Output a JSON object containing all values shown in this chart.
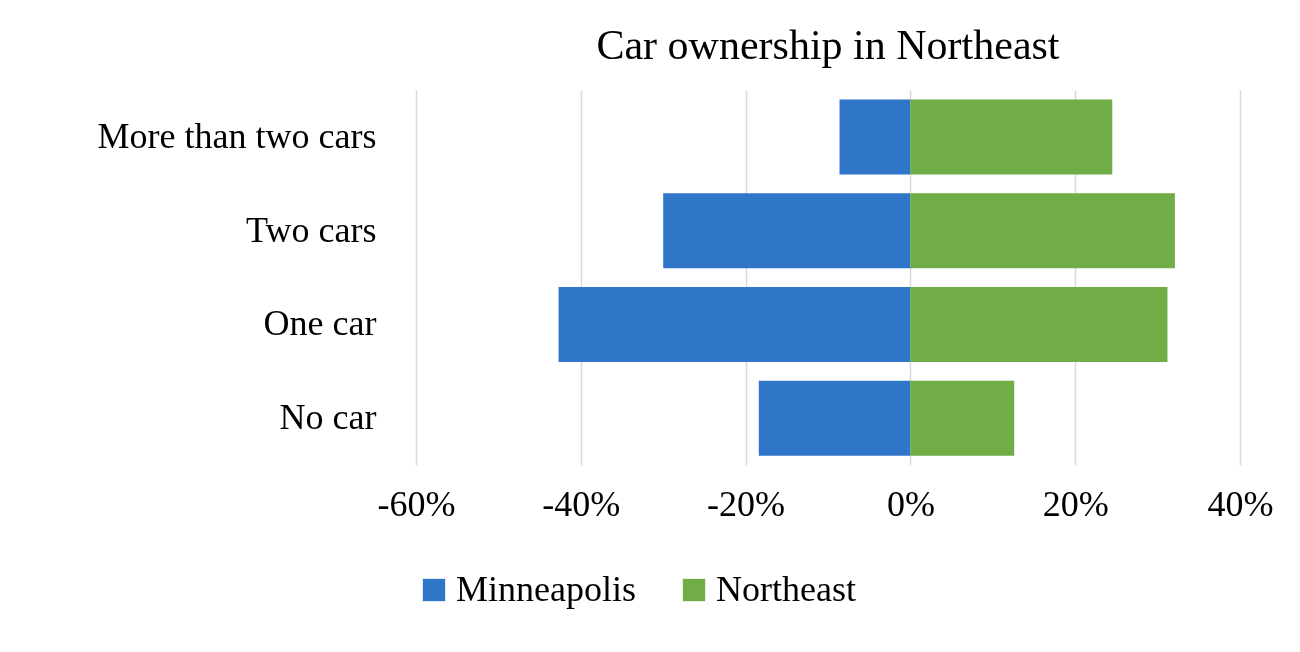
{
  "chart_data": {
    "type": "bar",
    "title": "Car ownership in Northeast",
    "orientation": "horizontal",
    "stacked": true,
    "categories": [
      "More than two cars",
      "Two cars",
      "One car",
      "No car"
    ],
    "series": [
      {
        "name": "Minneapolis",
        "color": "#2f75c8",
        "values": [
          -8.6,
          -30,
          -42.7,
          -18.4
        ]
      },
      {
        "name": "Northeast",
        "color": "#70ad47",
        "values": [
          24.5,
          32.1,
          31.2,
          12.6
        ]
      }
    ],
    "xlim": [
      -60,
      40
    ],
    "xticks": [
      {
        "value": -60,
        "label": "-60%"
      },
      {
        "value": -40,
        "label": "-40%"
      },
      {
        "value": -20,
        "label": "-20%"
      },
      {
        "value": 0,
        "label": "0%"
      },
      {
        "value": 20,
        "label": "20%"
      },
      {
        "value": 40,
        "label": "40%"
      }
    ],
    "grid": "x",
    "legend": "bottom"
  }
}
